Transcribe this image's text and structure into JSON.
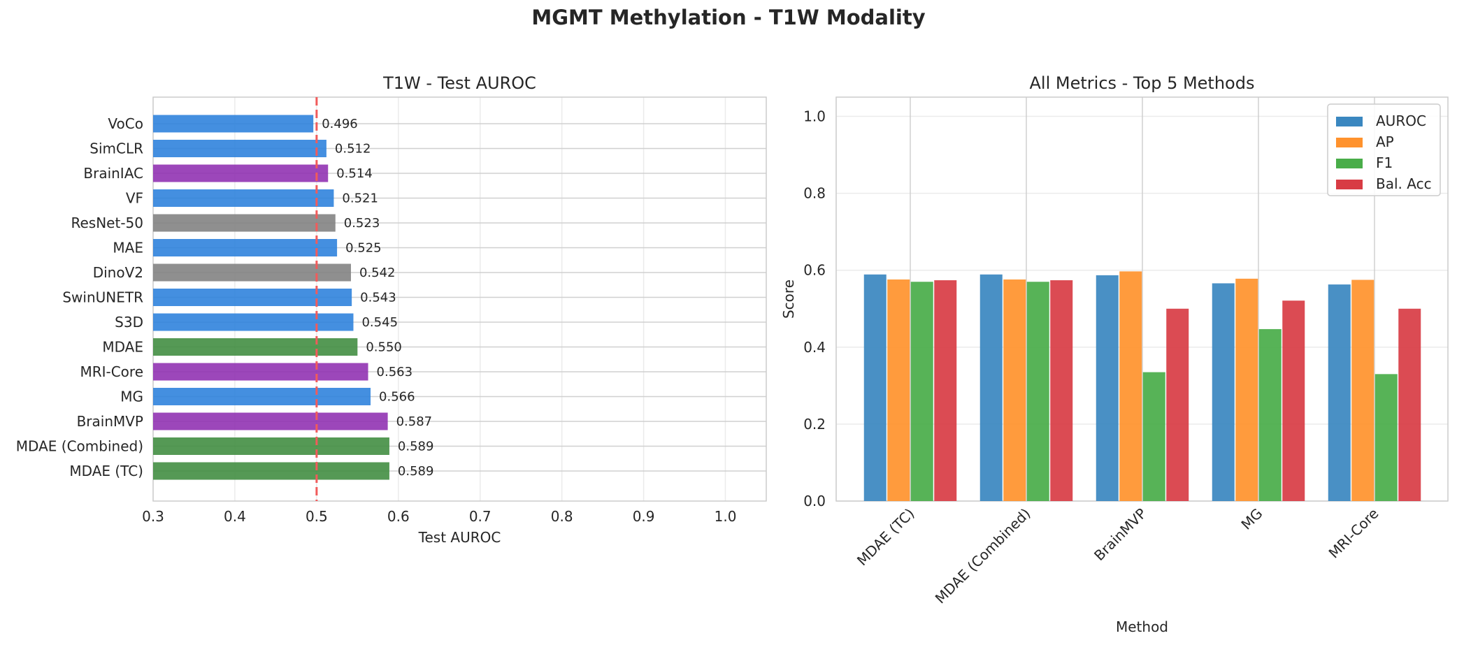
{
  "figure": {
    "title": "MGMT Methylation - T1W Modality"
  },
  "chart_data": [
    {
      "type": "bar",
      "orientation": "horizontal",
      "title": "T1W - Test AUROC",
      "xlabel": "Test AUROC",
      "ylabel": "",
      "xlim": [
        0.3,
        1.05
      ],
      "xticks": [
        "0.3",
        "0.4",
        "0.5",
        "0.6",
        "0.7",
        "0.8",
        "0.9",
        "1.0"
      ],
      "grid": true,
      "reference_line": {
        "value": 0.5,
        "style": "dashed",
        "color": "#f15b5b"
      },
      "categories": [
        "MDAE (TC)",
        "MDAE (Combined)",
        "BrainMVP",
        "MG",
        "MRI-Core",
        "MDAE",
        "S3D",
        "SwinUNETR",
        "DinoV2",
        "MAE",
        "ResNet-50",
        "VF",
        "BrainIAC",
        "SimCLR",
        "VoCo"
      ],
      "values": [
        0.589,
        0.589,
        0.587,
        0.566,
        0.563,
        0.55,
        0.545,
        0.543,
        0.542,
        0.525,
        0.523,
        0.521,
        0.514,
        0.512,
        0.496
      ],
      "value_labels": [
        "0.589",
        "0.589",
        "0.587",
        "0.566",
        "0.563",
        "0.550",
        "0.545",
        "0.543",
        "0.542",
        "0.525",
        "0.523",
        "0.521",
        "0.514",
        "0.512",
        "0.496"
      ],
      "colors": [
        "#3d8b3d",
        "#3d8b3d",
        "#8e2eb0",
        "#2a7fdc",
        "#8e2eb0",
        "#3d8b3d",
        "#2a7fdc",
        "#2a7fdc",
        "#808080",
        "#2a7fdc",
        "#808080",
        "#2a7fdc",
        "#8e2eb0",
        "#2a7fdc",
        "#2a7fdc"
      ]
    },
    {
      "type": "bar",
      "orientation": "vertical",
      "title": "All Metrics - Top 5 Methods",
      "xlabel": "Method",
      "ylabel": "Score",
      "ylim": [
        0,
        1.05
      ],
      "yticks": [
        "0.0",
        "0.2",
        "0.4",
        "0.6",
        "0.8",
        "1.0"
      ],
      "grid": true,
      "legend_position": "top-right",
      "categories": [
        "MDAE (TC)",
        "MDAE (Combined)",
        "BrainMVP",
        "MG",
        "MRI-Core"
      ],
      "series": [
        {
          "name": "AUROC",
          "color": "#3a87c0",
          "values": [
            0.589,
            0.589,
            0.587,
            0.566,
            0.563
          ]
        },
        {
          "name": "AP",
          "color": "#ff922d",
          "values": [
            0.576,
            0.576,
            0.597,
            0.578,
            0.575
          ]
        },
        {
          "name": "F1",
          "color": "#49ad49",
          "values": [
            0.57,
            0.57,
            0.335,
            0.447,
            0.33
          ]
        },
        {
          "name": "Bal. Acc",
          "color": "#d83c44",
          "values": [
            0.574,
            0.574,
            0.5,
            0.521,
            0.5
          ]
        }
      ]
    }
  ]
}
